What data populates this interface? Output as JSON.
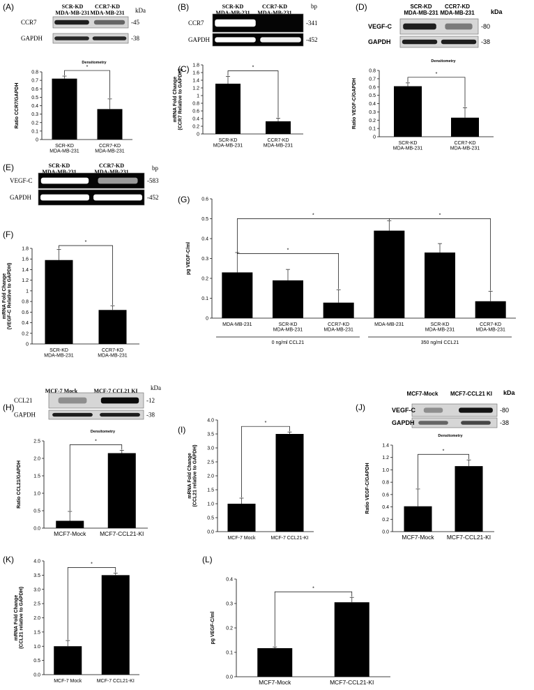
{
  "blots": {
    "A": {
      "headers": [
        "SCR-KD\nMDA-MB-231",
        "CCR7-KD\nMDA-MB-231"
      ],
      "unit": "kDa",
      "rows": [
        {
          "name": "CCR7",
          "size": "-45"
        },
        {
          "name": "GAPDH",
          "size": "-38"
        }
      ]
    },
    "B": {
      "headers": [
        "SCR-KD\nMDA-MB-231",
        "CCR7-KD\nMDA-MB-231"
      ],
      "unit": "bp",
      "rows": [
        {
          "name": "CCR7",
          "size": "-341"
        },
        {
          "name": "GAPDH",
          "size": "-452"
        }
      ]
    },
    "D": {
      "headers": [
        "SCR-KD\nMDA-MB-231",
        "CCR7-KD\nMDA-MB-231"
      ],
      "unit": "kDa",
      "rows": [
        {
          "name": "VEGF-C",
          "size": "-80"
        },
        {
          "name": "GAPDH",
          "size": "-38"
        }
      ]
    },
    "E": {
      "headers": [
        "SCR-KD\nMDA-MB-231",
        "CCR7-KD\nMDA-MB-231"
      ],
      "unit": "bp",
      "rows": [
        {
          "name": "VEGF-C",
          "size": "-583"
        },
        {
          "name": "GAPDH",
          "size": "-452"
        }
      ]
    },
    "H": {
      "headers": [
        "MCF-7 Mock",
        "MCF-7 CCL21 KI"
      ],
      "unit": "kDa",
      "rows": [
        {
          "name": "CCL21",
          "size": "-12"
        },
        {
          "name": "GAPDH",
          "size": "-38"
        }
      ]
    },
    "J": {
      "headers": [
        "MCF7-Mock",
        "MCF7-CCL21 KI"
      ],
      "unit": "kDa",
      "rows": [
        {
          "name": "VEGF-C",
          "size": "-80"
        },
        {
          "name": "GAPDH",
          "size": "-38"
        }
      ]
    }
  },
  "chart_data": [
    {
      "id": "A",
      "type": "bar",
      "panel_label": "(A)",
      "title": "Densitometry",
      "ylabel": "Ratio CCR7/GAPDH",
      "categories": [
        "SCR-KD\nMDA-MB-231",
        "CCR7-KD\nMDA-MB-231"
      ],
      "values": [
        0.72,
        0.36
      ],
      "errors": [
        0.03,
        0.12
      ],
      "ylim": [
        0,
        0.8
      ],
      "yticks": [
        "0",
        "0.1",
        "0.2",
        "0.3",
        "0.4",
        "0.5",
        "0.6",
        "0.7",
        "0.8"
      ],
      "significance": "*"
    },
    {
      "id": "C",
      "type": "bar",
      "panel_label": "(C)",
      "title": "",
      "ylabel": "mRNA Fold Change\n(CCR7 Relative to GAPDH)",
      "categories": [
        "SCR-KD\nMDA-MB-231",
        "CCR7-KD\nMDA-MB-231"
      ],
      "values": [
        1.31,
        0.33
      ],
      "errors": [
        0.19,
        0.08
      ],
      "ylim": [
        0,
        1.8
      ],
      "yticks": [
        "0",
        "0.2",
        "0.4",
        "0.6",
        "0.8",
        "1",
        "1.2",
        "1.4",
        "1.6",
        "1.8"
      ],
      "significance": "*"
    },
    {
      "id": "D",
      "type": "bar",
      "panel_label": "(D)",
      "title": "Densitometry",
      "ylabel": "Ratio VEGF-C/GAPDH",
      "categories": [
        "SCR-KD\nMDA-MB-231",
        "CCR7-KD\nMDA-MB-231"
      ],
      "values": [
        0.61,
        0.23
      ],
      "errors": [
        0.04,
        0.12
      ],
      "ylim": [
        0,
        0.8
      ],
      "yticks": [
        "0",
        "0.1",
        "0.2",
        "0.3",
        "0.4",
        "0.5",
        "0.6",
        "0.7",
        "0.8"
      ],
      "significance": "*"
    },
    {
      "id": "F",
      "type": "bar",
      "panel_label": "(F)",
      "title": "",
      "ylabel": "mRNA Fold Change\n(VEGF-C Relative to GAPDH)",
      "categories": [
        "SCR-KD\nMDA-MB-231",
        "CCR7-KD\nMDA-MB-231"
      ],
      "values": [
        1.58,
        0.64
      ],
      "errors": [
        0.2,
        0.08
      ],
      "ylim": [
        0,
        1.8
      ],
      "yticks": [
        "0",
        "0.2",
        "0.4",
        "0.6",
        "0.8",
        "1",
        "1.2",
        "1.4",
        "1.6",
        "1.8"
      ],
      "significance": "*"
    },
    {
      "id": "G",
      "type": "bar",
      "panel_label": "(G)",
      "title": "",
      "ylabel": "pg VEGF-C/ml",
      "categories": [
        "MDA-MB-231",
        "SCR-KD\nMDA-MB-231",
        "CCR7-KD\nMDA-MB-231",
        "MDA-MB-231",
        "SCR-KD\nMDA-MB-231",
        "CCR7-KD\nMDA-MB-231"
      ],
      "values": [
        0.23,
        0.19,
        0.078,
        0.44,
        0.33,
        0.085
      ],
      "errors": [
        0.1,
        0.055,
        0.065,
        0.05,
        0.045,
        0.05
      ],
      "groups": [
        {
          "label": "0 ng/ml CCL21",
          "from": 0,
          "to": 2
        },
        {
          "label": "350 ng/ml CCL21",
          "from": 3,
          "to": 5
        }
      ],
      "ylim": [
        0,
        0.6
      ],
      "yticks": [
        "0",
        "0.1",
        "0.2",
        "0.3",
        "0.4",
        "0.5",
        "0.6"
      ],
      "significance": "*"
    },
    {
      "id": "H",
      "type": "bar",
      "panel_label": "(H)",
      "title": "Densitometry",
      "ylabel": "Ratio CCL21/GAPDH",
      "categories": [
        "MCF7-Mock",
        "MCF7-CCL21-KI"
      ],
      "values": [
        0.21,
        2.15
      ],
      "errors": [
        0.27,
        0.08
      ],
      "ylim": [
        0,
        2.5
      ],
      "yticks": [
        "0.0",
        "0.5",
        "1.0",
        "1.5",
        "2.0",
        "2.5"
      ],
      "significance": "*"
    },
    {
      "id": "I",
      "type": "bar",
      "panel_label": "(I)",
      "title": "",
      "ylabel": "mRNA Fold Change\n(CCL21 relative to GAPDH)",
      "categories": [
        "MCF-7 Mock",
        "MCF-7 CCL21-KI"
      ],
      "values": [
        1.0,
        3.5
      ],
      "errors": [
        0.2,
        0.07
      ],
      "ylim": [
        0,
        4.0
      ],
      "yticks": [
        "0.0",
        "0.5",
        "1.0",
        "1.5",
        "2.0",
        "2.5",
        "3.0",
        "3.5",
        "4.0"
      ],
      "significance": "*"
    },
    {
      "id": "J",
      "type": "bar",
      "panel_label": "(J)",
      "title": "Densitometry",
      "ylabel": "Ratio VEGF-C/GAPDH",
      "categories": [
        "MCF7-Mock",
        "MCF7-CCL21-KI"
      ],
      "values": [
        0.41,
        1.06
      ],
      "errors": [
        0.28,
        0.1
      ],
      "ylim": [
        0,
        1.4
      ],
      "yticks": [
        "0.0",
        "0.2",
        "0.4",
        "0.6",
        "0.8",
        "1.0",
        "1.2",
        "1.4"
      ],
      "significance": "*"
    },
    {
      "id": "K",
      "type": "bar",
      "panel_label": "(K)",
      "title": "",
      "ylabel": "mRNA Fold Change\n(CCL21 relative to GAPDH)",
      "categories": [
        "MCF-7 Mock",
        "MCF-7 CCL21-KI"
      ],
      "values": [
        1.0,
        3.5
      ],
      "errors": [
        0.2,
        0.07
      ],
      "ylim": [
        0,
        4.0
      ],
      "yticks": [
        "0.0",
        "0.5",
        "1.0",
        "1.5",
        "2.0",
        "2.5",
        "3.0",
        "3.5",
        "4.0"
      ],
      "significance": "*"
    },
    {
      "id": "L",
      "type": "bar",
      "panel_label": "(L)",
      "title": "",
      "ylabel": "pg VEGF-C/ml",
      "categories": [
        "MCF7-Mock",
        "MCF7-CCL21-KI"
      ],
      "values": [
        0.117,
        0.305
      ],
      "errors": [
        0.005,
        0.02
      ],
      "ylim": [
        0,
        0.4
      ],
      "yticks": [
        "0.0",
        "0.1",
        "0.2",
        "0.3",
        "0.4"
      ],
      "significance": "*"
    }
  ],
  "colors": {
    "bar": "#000000",
    "axis": "#000000",
    "blot_bg": "#d6d6d6",
    "gel_bg": "#050505"
  }
}
